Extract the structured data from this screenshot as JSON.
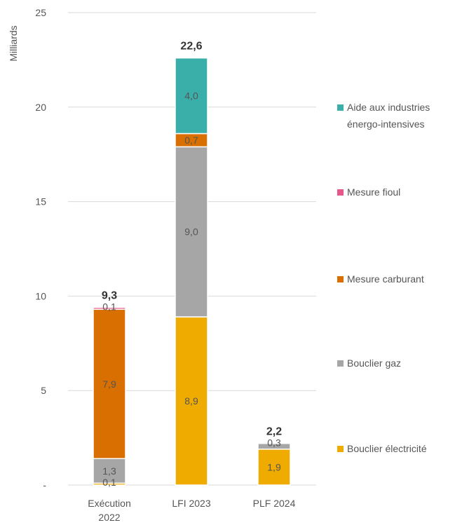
{
  "chart_data": {
    "type": "bar",
    "stacked": true,
    "ylabel": "Milliards",
    "ylim": [
      0,
      25
    ],
    "yticks": [
      0,
      5,
      10,
      15,
      20,
      25
    ],
    "ytick_labels": [
      "-",
      "5",
      "10",
      "15",
      "20",
      "25"
    ],
    "grid": true,
    "legend_position": "right",
    "categories": [
      "Exécution 2022",
      "LFI 2023",
      "PLF 2024"
    ],
    "category_lines": [
      [
        "Exécution",
        "2022"
      ],
      [
        "LFI 2023"
      ],
      [
        "PLF 2024"
      ]
    ],
    "totals": [
      "9,3",
      "22,6",
      "2,2"
    ],
    "series": [
      {
        "name": "Bouclier électricité",
        "color": "#F0AB00",
        "values": [
          0.1,
          8.9,
          1.9
        ],
        "labels": [
          "0,1",
          "8,9",
          "1,9"
        ]
      },
      {
        "name": "Bouclier gaz",
        "color": "#A6A6A6",
        "values": [
          1.3,
          9.0,
          0.3
        ],
        "labels": [
          "1,3",
          "9,0",
          "0,3"
        ]
      },
      {
        "name": "Mesure carburant",
        "color": "#D86F00",
        "values": [
          7.9,
          0.7,
          0
        ],
        "labels": [
          "7,9",
          "0,7",
          ""
        ]
      },
      {
        "name": "Mesure fioul",
        "color": "#E8578A",
        "values": [
          0.1,
          0,
          0
        ],
        "labels": [
          "0,1",
          "",
          ""
        ]
      },
      {
        "name": "Aide aux industries énergo-intensives",
        "name_lines": [
          "Aide aux industries",
          "énergo-intensives"
        ],
        "color": "#3AAFA9",
        "values": [
          0,
          4.0,
          0
        ],
        "labels": [
          "",
          "4,0",
          ""
        ]
      }
    ]
  }
}
